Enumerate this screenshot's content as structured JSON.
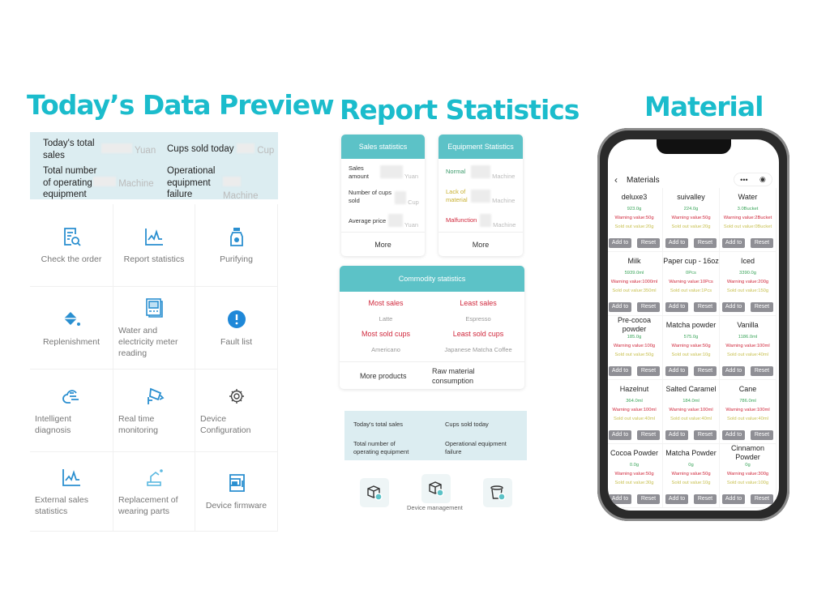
{
  "titles": {
    "preview": "Today’s Data Preview",
    "report": "Report Statistics",
    "material": "Material"
  },
  "preview": {
    "stats": [
      {
        "label": "Today's total sales",
        "unit": "Yuan"
      },
      {
        "label": "Cups sold today",
        "unit": "Cup"
      },
      {
        "label": "Total number of operating equipment",
        "unit": "Machine"
      },
      {
        "label": "Operational equipment failure",
        "unit": "Machine"
      }
    ],
    "menu": [
      {
        "label": "Check the order",
        "icon": "order-search-icon"
      },
      {
        "label": "Report statistics",
        "icon": "line-chart-icon"
      },
      {
        "label": "Purifying",
        "icon": "spray-bottle-icon"
      },
      {
        "label": "Replenishment",
        "icon": "paint-bucket-icon"
      },
      {
        "label": "Water and electricity meter reading",
        "icon": "meter-icon"
      },
      {
        "label": "Fault list",
        "icon": "exclamation-icon"
      },
      {
        "label": "Intelligent diagnosis",
        "icon": "diagnosis-icon"
      },
      {
        "label": "Real time monitoring",
        "icon": "camera-icon"
      },
      {
        "label": "Device Configuration",
        "icon": "gear-icon"
      },
      {
        "label": "External sales statistics",
        "icon": "line-chart-icon"
      },
      {
        "label": "Replacement of wearing parts",
        "icon": "robot-arm-icon"
      },
      {
        "label": "Device firmware",
        "icon": "coffee-machine-icon"
      }
    ]
  },
  "report": {
    "sales": {
      "title": "Sales statistics",
      "rows": [
        {
          "label": "Sales amount",
          "unit": "Yuan"
        },
        {
          "label": "Number of cups sold",
          "unit": "Cup"
        },
        {
          "label": "Average price",
          "unit": "Yuan"
        }
      ],
      "more": "More"
    },
    "equipment": {
      "title": "Equipment Statistics",
      "rows": [
        {
          "label": "Normal",
          "unit": "Machine",
          "color": "#3a9a6a"
        },
        {
          "label": "Lack of material",
          "unit": "Machine",
          "color": "#c8b030"
        },
        {
          "label": "Malfunction",
          "unit": "Machine",
          "color": "#d0283c"
        }
      ],
      "more": "More"
    },
    "commodity": {
      "title": "Commodity statistics",
      "most_sales": "Most sales",
      "most_sales_value": "Latte",
      "least_sales": "Least sales",
      "least_sales_value": "Espresso",
      "most_cups": "Most sold cups",
      "most_cups_value": "Americano",
      "least_cups": "Least sold cups",
      "least_cups_value": "Japanese Matcha Coffee",
      "more_products": "More products",
      "raw_material": "Raw material consumption"
    },
    "today": {
      "total_sales": "Today's total sales",
      "cups_sold": "Cups sold today",
      "operating": "Total number of operating equipment",
      "failure": "Operational equipment failure"
    },
    "device_management": "Device management"
  },
  "materials": {
    "title": "Materials",
    "add_label": "Add to",
    "reset_label": "Reset",
    "items": [
      {
        "name": "deluxe3",
        "qty": "923.0g",
        "warning": "Warning value:50g",
        "sold_out": "Sold out value:20g"
      },
      {
        "name": "suivalley",
        "qty": "224.0g",
        "warning": "Warning value:50g",
        "sold_out": "Sold out value:20g"
      },
      {
        "name": "Water",
        "qty": "3.0Bucket",
        "warning": "Warning value:2Bucket",
        "sold_out": "Sold out value:0Bucket"
      },
      {
        "name": "Milk",
        "qty": "5939.0ml",
        "warning": "Warning value:1000ml",
        "sold_out": "Sold out value:350ml"
      },
      {
        "name": "Paper cup - 16oz",
        "qty": "0Pcs",
        "warning": "Warning value:10Pcs",
        "sold_out": "Sold out value:1Pcs"
      },
      {
        "name": "Iced",
        "qty": "3390.0g",
        "warning": "Warning value:200g",
        "sold_out": "Sold out value:150g"
      },
      {
        "name": "Pre-cocoa powder",
        "qty": "185.0g",
        "warning": "Warning value:100g",
        "sold_out": "Sold out value:50g"
      },
      {
        "name": "Matcha powder",
        "qty": "575.0g",
        "warning": "Warning value:50g",
        "sold_out": "Sold out value:10g"
      },
      {
        "name": "Vanilla",
        "qty": "1186.0ml",
        "warning": "Warning value:100ml",
        "sold_out": "Sold out value:40ml"
      },
      {
        "name": "Hazelnut",
        "qty": "364.0ml",
        "warning": "Warning value:100ml",
        "sold_out": "Sold out value:40ml"
      },
      {
        "name": "Salted Caramel",
        "qty": "184.0ml",
        "warning": "Warning value:100ml",
        "sold_out": "Sold out value:40ml"
      },
      {
        "name": "Cane",
        "qty": "786.0ml",
        "warning": "Warning value:100ml",
        "sold_out": "Sold out value:40ml"
      },
      {
        "name": "Cocoa Powder",
        "qty": "0.0g",
        "warning": "Warning value:50g",
        "sold_out": "Sold out value:30g"
      },
      {
        "name": "Matcha Powder",
        "qty": "0g",
        "warning": "Warning value:50g",
        "sold_out": "Sold out value:10g"
      },
      {
        "name": "Cinnamon Powder",
        "qty": "0g",
        "warning": "Warning value:300g",
        "sold_out": "Sold out value:100g"
      }
    ]
  },
  "colors": {
    "accent": "#1bbccc",
    "header": "#5cc2c7",
    "icon": "#2a8fd0",
    "warning": "#d0283c",
    "quantity": "#3aa55a",
    "sold_out": "#c8c050"
  }
}
